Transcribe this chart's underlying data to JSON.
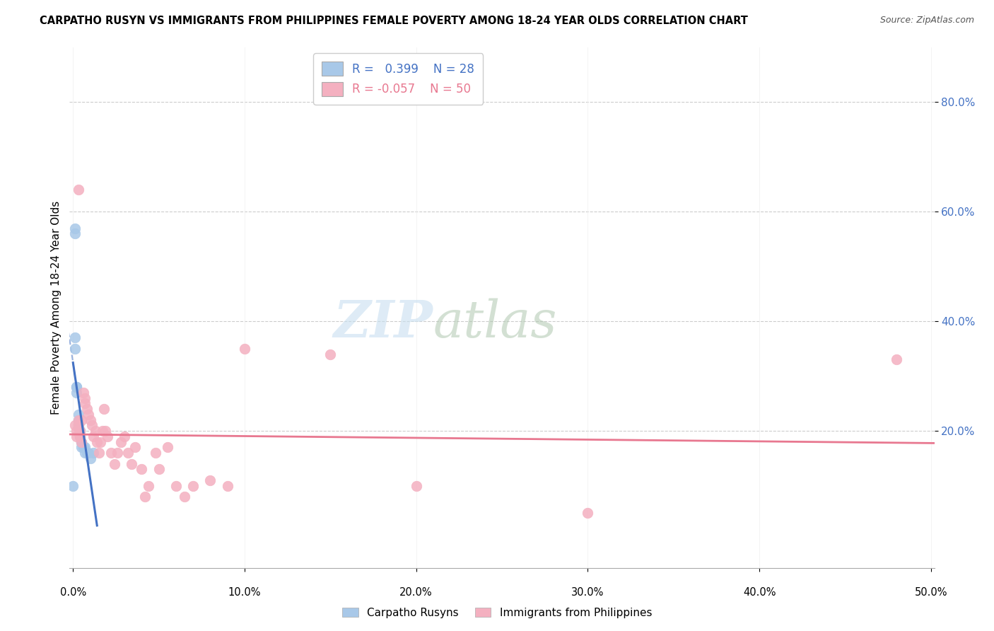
{
  "title": "CARPATHO RUSYN VS IMMIGRANTS FROM PHILIPPINES FEMALE POVERTY AMONG 18-24 YEAR OLDS CORRELATION CHART",
  "source": "Source: ZipAtlas.com",
  "ylabel": "Female Poverty Among 18-24 Year Olds",
  "xlim": [
    -0.002,
    0.502
  ],
  "ylim": [
    -0.05,
    0.9
  ],
  "xticks": [
    0.0,
    0.1,
    0.2,
    0.3,
    0.4,
    0.5
  ],
  "yticks": [
    0.2,
    0.4,
    0.6,
    0.8
  ],
  "legend_carpatho_R": "0.399",
  "legend_carpatho_N": "28",
  "legend_phil_R": "-0.057",
  "legend_phil_N": "50",
  "carpatho_color": "#a8c8e8",
  "phil_color": "#f4b0c0",
  "carpatho_line_color": "#4472c4",
  "phil_line_color": "#e87890",
  "background_color": "#ffffff",
  "watermark_zip": "ZIP",
  "watermark_atlas": "atlas",
  "carpatho_x": [
    0.0,
    0.001,
    0.001,
    0.001,
    0.001,
    0.002,
    0.002,
    0.002,
    0.002,
    0.003,
    0.003,
    0.003,
    0.003,
    0.004,
    0.004,
    0.004,
    0.004,
    0.005,
    0.005,
    0.005,
    0.006,
    0.006,
    0.007,
    0.007,
    0.008,
    0.009,
    0.01,
    0.012
  ],
  "carpatho_y": [
    0.1,
    0.56,
    0.57,
    0.35,
    0.37,
    0.27,
    0.28,
    0.28,
    0.28,
    0.21,
    0.22,
    0.23,
    0.21,
    0.2,
    0.19,
    0.2,
    0.19,
    0.18,
    0.17,
    0.18,
    0.17,
    0.17,
    0.17,
    0.16,
    0.16,
    0.16,
    0.15,
    0.16
  ],
  "phil_x": [
    0.001,
    0.002,
    0.002,
    0.003,
    0.003,
    0.003,
    0.004,
    0.004,
    0.005,
    0.005,
    0.006,
    0.007,
    0.007,
    0.008,
    0.009,
    0.01,
    0.011,
    0.012,
    0.013,
    0.014,
    0.015,
    0.016,
    0.017,
    0.018,
    0.019,
    0.02,
    0.022,
    0.024,
    0.026,
    0.028,
    0.03,
    0.032,
    0.034,
    0.036,
    0.04,
    0.042,
    0.044,
    0.048,
    0.05,
    0.055,
    0.06,
    0.065,
    0.07,
    0.08,
    0.09,
    0.1,
    0.15,
    0.2,
    0.3,
    0.48
  ],
  "phil_y": [
    0.21,
    0.2,
    0.19,
    0.22,
    0.21,
    0.64,
    0.2,
    0.19,
    0.22,
    0.18,
    0.27,
    0.26,
    0.25,
    0.24,
    0.23,
    0.22,
    0.21,
    0.19,
    0.2,
    0.18,
    0.16,
    0.18,
    0.2,
    0.24,
    0.2,
    0.19,
    0.16,
    0.14,
    0.16,
    0.18,
    0.19,
    0.16,
    0.14,
    0.17,
    0.13,
    0.08,
    0.1,
    0.16,
    0.13,
    0.17,
    0.1,
    0.08,
    0.1,
    0.11,
    0.1,
    0.35,
    0.34,
    0.1,
    0.05,
    0.33
  ]
}
